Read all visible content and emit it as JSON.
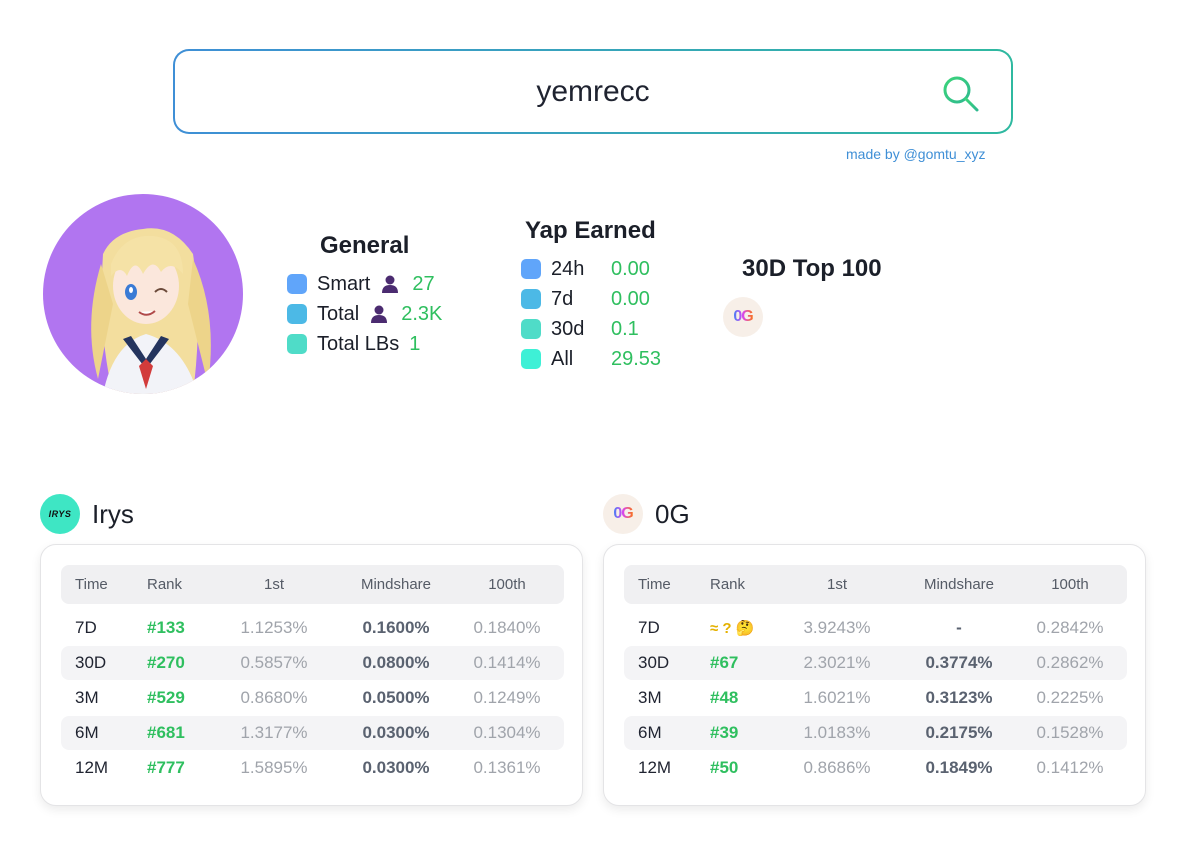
{
  "search": {
    "value": "yemrecc",
    "made_by": "made by @gomtu_xyz"
  },
  "general": {
    "title": "General",
    "rows": [
      {
        "label": "Smart",
        "value": "27",
        "color": "#60a5fa",
        "has_person": true
      },
      {
        "label": "Total",
        "value": "2.3K",
        "color": "#4cb9e6",
        "has_person": true
      },
      {
        "label": "Total LBs",
        "value": "1",
        "color": "#4fdcc8",
        "has_person": false
      }
    ]
  },
  "yap": {
    "title": "Yap Earned",
    "rows": [
      {
        "label": "24h",
        "value": "0.00",
        "color": "#60a5fa"
      },
      {
        "label": "7d",
        "value": "0.00",
        "color": "#4cb9e6"
      },
      {
        "label": "30d",
        "value": "0.1",
        "color": "#4fdcc8"
      },
      {
        "label": "All",
        "value": "29.53",
        "color": "#3ef0d6"
      }
    ]
  },
  "top100": {
    "title": "30D Top 100",
    "logo_text": "0G"
  },
  "irys": {
    "name": "Irys",
    "logo_text": "IRYS",
    "headers": [
      "Time",
      "Rank",
      "1st",
      "Mindshare",
      "100th"
    ],
    "rows": [
      {
        "time": "7D",
        "rank": "#133",
        "first": "1.1253%",
        "mindshare": "0.1600%",
        "last": "0.1840%"
      },
      {
        "time": "30D",
        "rank": "#270",
        "first": "0.5857%",
        "mindshare": "0.0800%",
        "last": "0.1414%"
      },
      {
        "time": "3M",
        "rank": "#529",
        "first": "0.8680%",
        "mindshare": "0.0500%",
        "last": "0.1249%"
      },
      {
        "time": "6M",
        "rank": "#681",
        "first": "1.3177%",
        "mindshare": "0.0300%",
        "last": "0.1304%"
      },
      {
        "time": "12M",
        "rank": "#777",
        "first": "1.5895%",
        "mindshare": "0.0300%",
        "last": "0.1361%"
      }
    ]
  },
  "og": {
    "name": "0G",
    "logo_text": "0G",
    "headers": [
      "Time",
      "Rank",
      "1st",
      "Mindshare",
      "100th"
    ],
    "rows": [
      {
        "time": "7D",
        "rank": "≈ ? 🤔",
        "first": "3.9243%",
        "mindshare": "-",
        "last": "0.2842%"
      },
      {
        "time": "30D",
        "rank": "#67",
        "first": "2.3021%",
        "mindshare": "0.3774%",
        "last": "0.2862%"
      },
      {
        "time": "3M",
        "rank": "#48",
        "first": "1.6021%",
        "mindshare": "0.3123%",
        "last": "0.2225%"
      },
      {
        "time": "6M",
        "rank": "#39",
        "first": "1.0183%",
        "mindshare": "0.2175%",
        "last": "0.1528%"
      },
      {
        "time": "12M",
        "rank": "#50",
        "first": "0.8686%",
        "mindshare": "0.1849%",
        "last": "0.1412%"
      }
    ]
  }
}
